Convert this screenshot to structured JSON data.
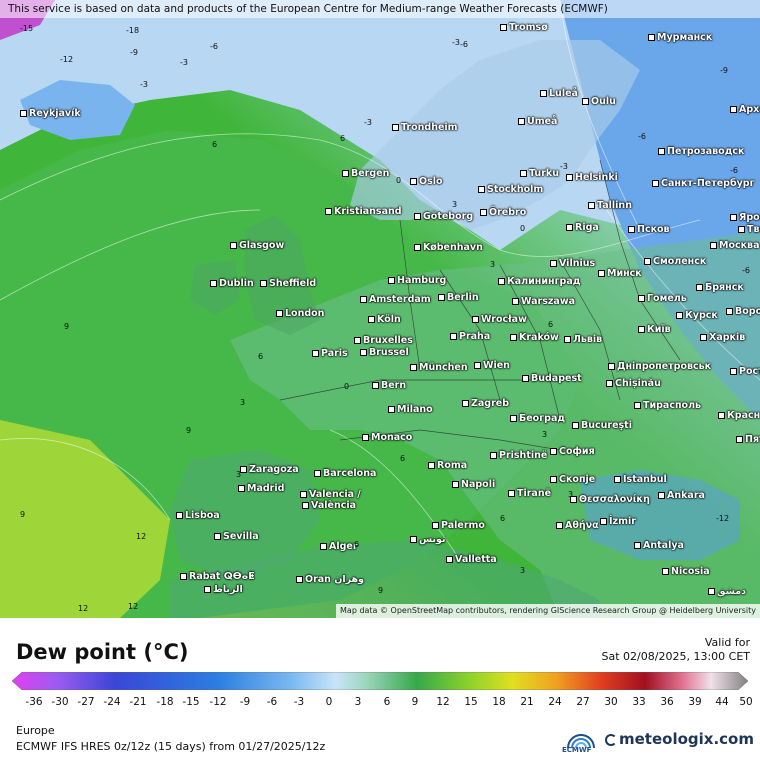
{
  "disclaimer": "This service is based on data and products of the European Centre for Medium-range Weather Forecasts (ECMWF)",
  "attribution": "Map data © OpenStreetMap contributors, rendering GIScience Research Group @ Heidelberg University",
  "legend": {
    "title": "Dew point (°C)",
    "valid_label": "Valid for",
    "valid_time": "Sat 02/08/2025, 13:00 CET",
    "ticks": [
      "-36",
      "-30",
      "-27",
      "-24",
      "-21",
      "-18",
      "-15",
      "-12",
      "-9",
      "-6",
      "-3",
      "0",
      "3",
      "6",
      "9",
      "12",
      "15",
      "18",
      "21",
      "24",
      "27",
      "30",
      "33",
      "36",
      "39",
      "44",
      "50"
    ],
    "region": "Europe",
    "model": "ECMWF IFS HRES 0z/12z (15 days) from 01/27/2025/12z",
    "ecmwf_label": "ECMWF",
    "brand": "meteologix.com"
  },
  "cities": [
    {
      "name": "Reykjavík"
    },
    {
      "name": "Tromsø"
    },
    {
      "name": "Мурманск"
    },
    {
      "name": "Luleå"
    },
    {
      "name": "Oulu"
    },
    {
      "name": "Umeå"
    },
    {
      "name": "Trondheim"
    },
    {
      "name": "Петрозаводск"
    },
    {
      "name": "Арха"
    },
    {
      "name": "Bergen"
    },
    {
      "name": "Oslo"
    },
    {
      "name": "Turku"
    },
    {
      "name": "Helsinki"
    },
    {
      "name": "Санкт-Петербург"
    },
    {
      "name": "Stockholm"
    },
    {
      "name": "Örebro"
    },
    {
      "name": "Tallinn"
    },
    {
      "name": "Kristiansand"
    },
    {
      "name": "Göteborg"
    },
    {
      "name": "Яросл"
    },
    {
      "name": "Псков"
    },
    {
      "name": "Riga"
    },
    {
      "name": "Тве"
    },
    {
      "name": "Москва"
    },
    {
      "name": "København"
    },
    {
      "name": "Glasgow"
    },
    {
      "name": "Vilnius"
    },
    {
      "name": "Смоленск"
    },
    {
      "name": "Минск"
    },
    {
      "name": "Калининград"
    },
    {
      "name": "Брянск"
    },
    {
      "name": "Hamburg"
    },
    {
      "name": "Sheffield"
    },
    {
      "name": "Dublin"
    },
    {
      "name": "Гомель"
    },
    {
      "name": "Amsterdam"
    },
    {
      "name": "Berlin"
    },
    {
      "name": "Warszawa"
    },
    {
      "name": "Курск"
    },
    {
      "name": "Ворон"
    },
    {
      "name": "London"
    },
    {
      "name": "Köln"
    },
    {
      "name": "Wrocław"
    },
    {
      "name": "Київ"
    },
    {
      "name": "Харків"
    },
    {
      "name": "Bruxelles"
    },
    {
      "name": "Brussel"
    },
    {
      "name": "Praha"
    },
    {
      "name": "Kraków"
    },
    {
      "name": "Львів"
    },
    {
      "name": "Paris"
    },
    {
      "name": "Дніпропетровськ"
    },
    {
      "name": "München"
    },
    {
      "name": "Wien"
    },
    {
      "name": "Ростов"
    },
    {
      "name": "Budapest"
    },
    {
      "name": "Chișinău"
    },
    {
      "name": "Bern"
    },
    {
      "name": "Тирасполь"
    },
    {
      "name": "Краснод"
    },
    {
      "name": "Milano"
    },
    {
      "name": "Zagreb"
    },
    {
      "name": "Београд"
    },
    {
      "name": "Bucureşti"
    },
    {
      "name": "Monaco"
    },
    {
      "name": "Пятиг"
    },
    {
      "name": "Zaragoza"
    },
    {
      "name": "Roma"
    },
    {
      "name": "Barcelona"
    },
    {
      "name": "Prishtinë"
    },
    {
      "name": "София"
    },
    {
      "name": "Istanbul"
    },
    {
      "name": "Madrid"
    },
    {
      "name": "Napoli"
    },
    {
      "name": "Скопје"
    },
    {
      "name": "Tiranë"
    },
    {
      "name": "Θεσσαλονίκη"
    },
    {
      "name": "Ankara"
    },
    {
      "name": "Valencia /"
    },
    {
      "name": "València"
    },
    {
      "name": "Lisboa"
    },
    {
      "name": "İzmir"
    },
    {
      "name": "Αθήνα"
    },
    {
      "name": "Palermo"
    },
    {
      "name": "Sevilla"
    },
    {
      "name": "تونس"
    },
    {
      "name": "Alger"
    },
    {
      "name": "Antalya"
    },
    {
      "name": "Valletta"
    },
    {
      "name": "Rabat ⵕⴱⴰⵟ"
    },
    {
      "name": "الرباط"
    },
    {
      "name": "Oran وهران"
    },
    {
      "name": "Nicosia"
    },
    {
      "name": "دمشق"
    }
  ],
  "isolines": [
    "-3",
    "-6",
    "-9",
    "-12",
    "-18",
    "-15",
    "-3",
    "-6",
    "-9",
    "-6",
    "-3",
    "-3",
    "0",
    "3",
    "6",
    "-3",
    "-6",
    "0",
    "3",
    "6",
    "9",
    "12",
    "12",
    "6",
    "3",
    "0",
    "3",
    "9",
    "6",
    "3",
    "6",
    "9",
    "12",
    "6",
    "3",
    "9",
    "6",
    "3",
    "-6",
    "-12"
  ]
}
